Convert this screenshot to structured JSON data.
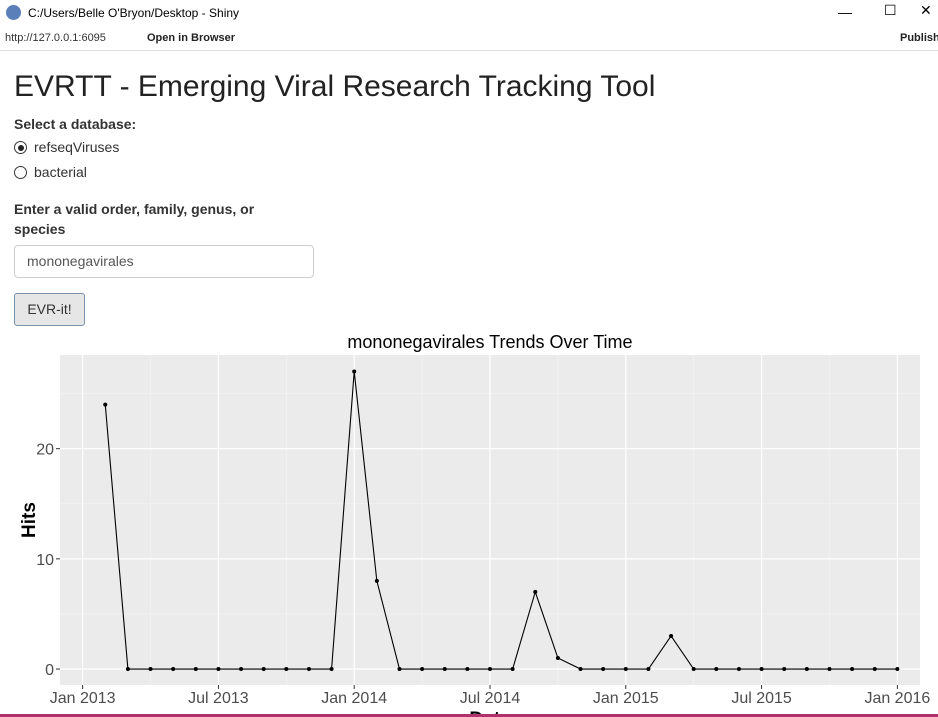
{
  "window": {
    "title": "C:/Users/Belle O'Bryon/Desktop - Shiny"
  },
  "toolbar": {
    "url": "http://127.0.0.1:6095",
    "open_in_browser": "Open in Browser",
    "publish": "Publish"
  },
  "app": {
    "title": "EVRTT - Emerging Viral Research Tracking Tool",
    "database_label": "Select a database:",
    "database_options": [
      "refseqViruses",
      "bacterial"
    ],
    "selected_index": 0,
    "taxon_label": "Enter a valid order, family, genus, or species",
    "taxon_value": "mononegavirales",
    "button": "EVR-it!"
  },
  "chart_data": {
    "type": "line",
    "title": "mononegavirales Trends Over Time",
    "x_label": "Date",
    "y_label": "Hits",
    "color": "#000000",
    "grid": true,
    "x": [
      "2013-02",
      "2013-03",
      "2013-04",
      "2013-05",
      "2013-06",
      "2013-07",
      "2013-08",
      "2013-09",
      "2013-10",
      "2013-11",
      "2013-12",
      "2014-01",
      "2014-02",
      "2014-03",
      "2014-04",
      "2014-05",
      "2014-06",
      "2014-07",
      "2014-08",
      "2014-09",
      "2014-10",
      "2014-11",
      "2014-12",
      "2015-01",
      "2015-02",
      "2015-03",
      "2015-04",
      "2015-05",
      "2015-06",
      "2015-07",
      "2015-08",
      "2015-09",
      "2015-10",
      "2015-11",
      "2015-12",
      "2016-01"
    ],
    "values": [
      24,
      0,
      0,
      0,
      0,
      0,
      0,
      0,
      0,
      0,
      0,
      27,
      8,
      0,
      0,
      0,
      0,
      0,
      0,
      7,
      1,
      0,
      0,
      0,
      0,
      3,
      0,
      0,
      0,
      0,
      0,
      0,
      0,
      0,
      0,
      0
    ],
    "xlim": [
      "2012-12",
      "2016-02"
    ],
    "xticks": [
      {
        "value": "2013-01",
        "label": "Jan 2013"
      },
      {
        "value": "2013-07",
        "label": "Jul 2013"
      },
      {
        "value": "2014-01",
        "label": "Jan 2014"
      },
      {
        "value": "2014-07",
        "label": "Jul 2014"
      },
      {
        "value": "2015-01",
        "label": "Jan 2015"
      },
      {
        "value": "2015-07",
        "label": "Jul 2015"
      },
      {
        "value": "2016-01",
        "label": "Jan 2016"
      }
    ],
    "ylim": [
      -1.45,
      28.5
    ],
    "yticks": [
      0,
      10,
      20
    ]
  }
}
